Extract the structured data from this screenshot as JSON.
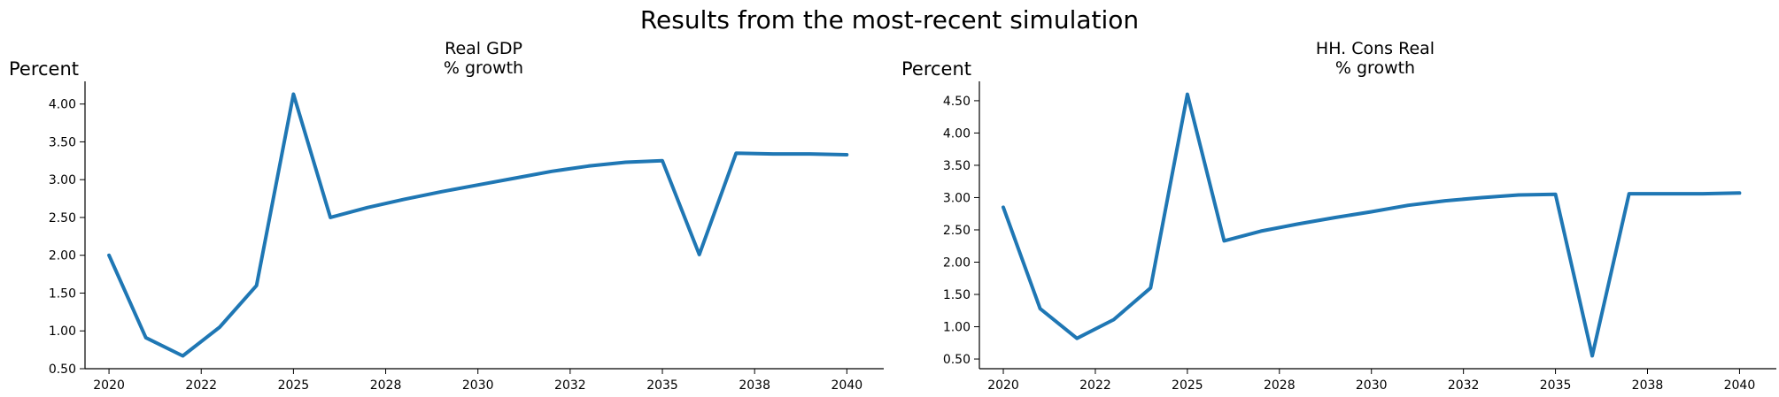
{
  "figure": {
    "title": "Results from the most-recent simulation"
  },
  "chart_data": [
    {
      "type": "line",
      "title_lines": [
        "Real GDP",
        "% growth"
      ],
      "ylabel": "Percent",
      "color": "#1f77b4",
      "xlim": [
        2019.35,
        2041.0
      ],
      "ylim": [
        0.5,
        4.3
      ],
      "x_ticks": [
        2020,
        2022.5,
        2025,
        2027.5,
        2030,
        2032.5,
        2035,
        2037.5,
        2040
      ],
      "x_tick_labels": [
        "2020",
        "2022",
        "2025",
        "2028",
        "2030",
        "2032",
        "2035",
        "2038",
        "2040"
      ],
      "y_ticks": [
        0.5,
        1.0,
        1.5,
        2.0,
        2.5,
        3.0,
        3.5,
        4.0
      ],
      "y_tick_labels": [
        "0.50",
        "1.00",
        "1.50",
        "2.00",
        "2.50",
        "3.00",
        "3.50",
        "4.00"
      ],
      "x": [
        2020,
        2021,
        2022,
        2023,
        2024,
        2025,
        2026,
        2027,
        2028,
        2029,
        2030,
        2031,
        2032,
        2033,
        2034,
        2035,
        2036,
        2037,
        2038,
        2039,
        2040
      ],
      "values": [
        2.0,
        0.91,
        0.67,
        1.05,
        1.6,
        4.13,
        2.5,
        2.63,
        2.74,
        2.84,
        2.93,
        3.02,
        3.11,
        3.18,
        3.23,
        3.25,
        2.01,
        3.35,
        3.34,
        3.34,
        3.33
      ]
    },
    {
      "type": "line",
      "title_lines": [
        "HH. Cons Real",
        "% growth"
      ],
      "ylabel": "Percent",
      "color": "#1f77b4",
      "xlim": [
        2019.35,
        2041.0
      ],
      "ylim": [
        0.35,
        4.8
      ],
      "x_ticks": [
        2020,
        2022.5,
        2025,
        2027.5,
        2030,
        2032.5,
        2035,
        2037.5,
        2040
      ],
      "x_tick_labels": [
        "2020",
        "2022",
        "2025",
        "2028",
        "2030",
        "2032",
        "2035",
        "2038",
        "2040"
      ],
      "y_ticks": [
        0.5,
        1.0,
        1.5,
        2.0,
        2.5,
        3.0,
        3.5,
        4.0,
        4.5
      ],
      "y_tick_labels": [
        "0.50",
        "1.00",
        "1.50",
        "2.00",
        "2.50",
        "3.00",
        "3.50",
        "4.00",
        "4.50"
      ],
      "x": [
        2020,
        2021,
        2022,
        2023,
        2024,
        2025,
        2026,
        2027,
        2028,
        2029,
        2030,
        2031,
        2032,
        2033,
        2034,
        2035,
        2036,
        2037,
        2038,
        2039,
        2040
      ],
      "values": [
        2.85,
        1.28,
        0.82,
        1.11,
        1.6,
        4.6,
        2.33,
        2.48,
        2.59,
        2.69,
        2.78,
        2.88,
        2.95,
        3.0,
        3.04,
        3.05,
        0.55,
        3.06,
        3.06,
        3.06,
        3.07
      ]
    }
  ]
}
